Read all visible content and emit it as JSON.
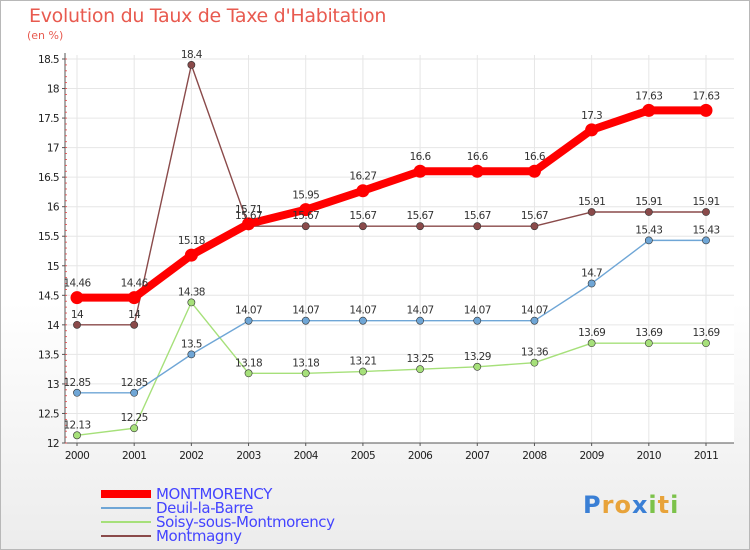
{
  "chart_data": {
    "type": "line",
    "title": "Evolution du Taux de Taxe d'Habitation",
    "unit_label": "(en %)",
    "x": [
      "2000",
      "2001",
      "2002",
      "2003",
      "2004",
      "2005",
      "2006",
      "2007",
      "2008",
      "2009",
      "2010",
      "2011"
    ],
    "ylim": [
      12,
      18.5
    ],
    "yticks": [
      "12",
      "12.5",
      "13",
      "13.5",
      "14",
      "14.5",
      "15",
      "15.5",
      "16",
      "16.5",
      "17",
      "17.5",
      "18",
      "18.5"
    ],
    "legend_position": "bottom-left",
    "series": [
      {
        "name": "MONTMORENCY",
        "color": "#ff0000",
        "values": [
          14.46,
          14.46,
          15.18,
          15.71,
          15.95,
          16.27,
          16.6,
          16.6,
          16.6,
          17.3,
          17.63,
          17.63
        ],
        "labels": [
          "14.46",
          "14.46",
          "15.18",
          "15.71",
          "15.95",
          "16.27",
          "16.6",
          "16.6",
          "16.6",
          "17.3",
          "17.63",
          "17.63"
        ]
      },
      {
        "name": "Deuil-la-Barre",
        "color": "#6fa6d6",
        "values": [
          12.85,
          12.85,
          13.5,
          14.07,
          14.07,
          14.07,
          14.07,
          14.07,
          14.07,
          14.7,
          15.43,
          15.43
        ],
        "labels": [
          "12.85",
          "12.85",
          "13.5",
          "14.07",
          "14.07",
          "14.07",
          "14.07",
          "14.07",
          "14.07",
          "14.7",
          "15.43",
          "15.43"
        ]
      },
      {
        "name": "Soisy-sous-Montmorency",
        "color": "#a6e07a",
        "values": [
          12.13,
          12.25,
          14.38,
          13.18,
          13.18,
          13.21,
          13.25,
          13.29,
          13.36,
          13.69,
          13.69,
          13.69
        ],
        "labels": [
          "12.13",
          "12.25",
          "14.38",
          "13.18",
          "13.18",
          "13.21",
          "13.25",
          "13.29",
          "13.36",
          "13.69",
          "13.69",
          "13.69"
        ]
      },
      {
        "name": "Montmagny",
        "color": "#8a4a4a",
        "values": [
          14,
          14,
          18.4,
          15.67,
          15.67,
          15.67,
          15.67,
          15.67,
          15.67,
          15.91,
          15.91,
          15.91
        ],
        "labels": [
          "14",
          "14",
          "18.4",
          "15.67",
          "15.67",
          "15.67",
          "15.67",
          "15.67",
          "15.67",
          "15.91",
          "15.91",
          "15.91"
        ]
      }
    ]
  },
  "legend_text_color": "#4444ff",
  "brand": {
    "letters": [
      {
        "ch": "P",
        "color": "#3a7fd5"
      },
      {
        "ch": "r",
        "color": "#e8a33a"
      },
      {
        "ch": "o",
        "color": "#e8a33a"
      },
      {
        "ch": "x",
        "color": "#3a7fd5"
      },
      {
        "ch": "i",
        "color": "#7cc24a"
      },
      {
        "ch": "t",
        "color": "#e8a33a"
      },
      {
        "ch": "i",
        "color": "#7cc24a"
      }
    ]
  }
}
